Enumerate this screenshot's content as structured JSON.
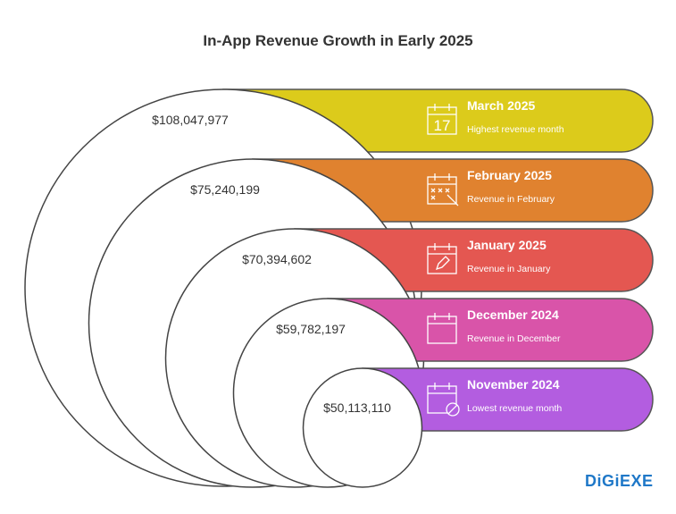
{
  "title": "In-App Revenue Growth in Early 2025",
  "items": [
    {
      "month": "March 2025",
      "subtitle": "Highest revenue month",
      "value": "$108,047,977",
      "color": "#dccb1b",
      "icon": "calendar-17-icon",
      "icon_text": "17"
    },
    {
      "month": "February 2025",
      "subtitle": "Revenue in February",
      "value": "$75,240,199",
      "color": "#e0822f",
      "icon": "calendar-edit-icon"
    },
    {
      "month": "January 2025",
      "subtitle": "Revenue in January",
      "value": "$70,394,602",
      "color": "#e45751",
      "icon": "calendar-pencil-icon"
    },
    {
      "month": "December 2024",
      "subtitle": "Revenue in December",
      "value": "$59,782,197",
      "color": "#d954a9",
      "icon": "calendar-blank-icon"
    },
    {
      "month": "November 2024",
      "subtitle": "Lowest revenue month",
      "value": "$50,113,110",
      "color": "#b35de0",
      "icon": "calendar-blocked-icon"
    }
  ],
  "logo": "DiGiEXE"
}
